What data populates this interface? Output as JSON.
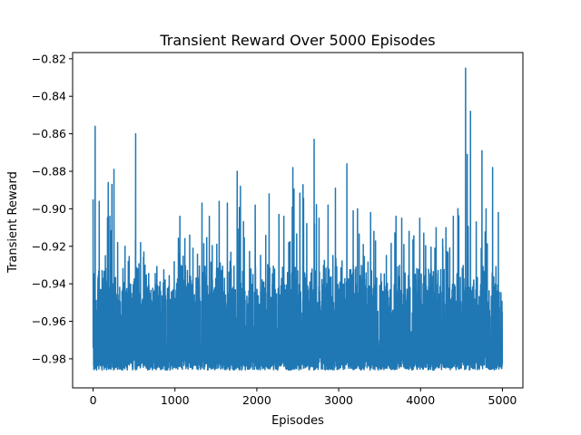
{
  "chart_data": {
    "type": "line",
    "title": "Transient Reward Over 5000 Episodes",
    "xlabel": "Episodes",
    "ylabel": "Transient Reward",
    "xlim": [
      -250,
      5250
    ],
    "ylim": [
      -0.9955,
      -0.8167
    ],
    "grid": false,
    "x_ticks": [
      0,
      1000,
      2000,
      3000,
      4000,
      5000
    ],
    "x_tick_labels": [
      "0",
      "1000",
      "2000",
      "3000",
      "4000",
      "5000"
    ],
    "y_ticks": [
      -0.98,
      -0.96,
      -0.94,
      -0.92,
      -0.9,
      -0.88,
      -0.86,
      -0.84,
      -0.82
    ],
    "y_tick_labels": [
      "−0.98",
      "−0.96",
      "−0.94",
      "−0.92",
      "−0.90",
      "−0.88",
      "−0.86",
      "−0.84",
      "−0.82"
    ],
    "series": [
      {
        "color": "#1f77b4",
        "n_points": 5000,
        "floor": -0.988,
        "typical_band": [
          -0.986,
          -0.94
        ],
        "x": [
          0,
          5,
          25,
          60,
          75,
          110,
          150,
          185,
          205,
          230,
          255,
          300,
          390,
          430,
          520,
          580,
          620,
          780,
          880,
          1060,
          1180,
          1220,
          1330,
          1420,
          1540,
          1560,
          1640,
          1760,
          1800,
          1980,
          2150,
          2270,
          2330,
          2390,
          2440,
          2700,
          2760,
          2870,
          2960,
          3100,
          3230,
          3300,
          3390,
          3430,
          3700,
          3770,
          3860,
          3990,
          4190,
          4310,
          4400,
          4550,
          4570,
          4610,
          4680,
          4750,
          4800,
          4880,
          4950,
          5000
        ],
        "y": [
          -0.895,
          -0.972,
          -0.856,
          -0.937,
          -0.896,
          -0.933,
          -0.925,
          -0.886,
          -0.904,
          -0.887,
          -0.879,
          -0.918,
          -0.92,
          -0.928,
          -0.86,
          -0.918,
          -0.923,
          -0.935,
          -0.938,
          -0.904,
          -0.914,
          -0.921,
          -0.897,
          -0.904,
          -0.896,
          -0.934,
          -0.897,
          -0.88,
          -0.888,
          -0.898,
          -0.892,
          -0.903,
          -0.904,
          -0.918,
          -0.878,
          -0.863,
          -0.905,
          -0.898,
          -0.889,
          -0.876,
          -0.9,
          -0.919,
          -0.902,
          -0.912,
          -0.904,
          -0.905,
          -0.912,
          -0.905,
          -0.91,
          -0.91,
          -0.904,
          -0.825,
          -0.871,
          -0.848,
          -0.907,
          -0.869,
          -0.9,
          -0.878,
          -0.902,
          -0.973
        ]
      }
    ]
  }
}
